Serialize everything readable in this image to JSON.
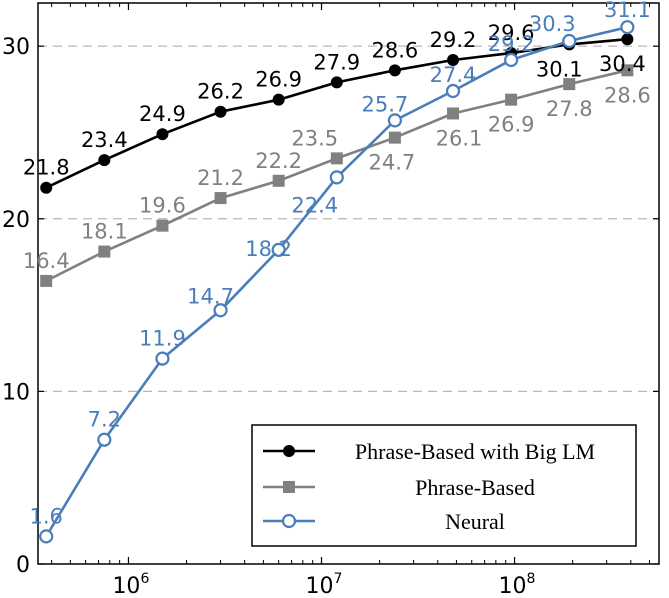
{
  "chart_data": {
    "type": "line",
    "xscale": "log",
    "xlim": [
      340000,
      560000000
    ],
    "ylim": [
      0,
      32.5
    ],
    "yticks": [
      0,
      10,
      20,
      30
    ],
    "xticks": [
      {
        "value": 1000000,
        "base": "10",
        "exp": "6"
      },
      {
        "value": 10000000,
        "base": "10",
        "exp": "7"
      },
      {
        "value": 100000000,
        "base": "10",
        "exp": "8"
      }
    ],
    "grid": "horizontal-dashed",
    "legend_position": "bottom-right",
    "x": [
      375000,
      750000,
      1500000,
      3000000,
      6000000,
      12000000,
      24000000,
      48000000,
      96000000,
      192000000,
      384000000
    ],
    "series": [
      {
        "name": "Phrase-Based with Big LM",
        "color": "#000000",
        "marker": "circle-filled",
        "values": [
          21.8,
          23.4,
          24.9,
          26.2,
          26.9,
          27.9,
          28.6,
          29.2,
          29.6,
          30.1,
          30.4
        ],
        "labels": [
          "21.8",
          "23.4",
          "24.9",
          "26.2",
          "26.9",
          "27.9",
          "28.6",
          "29.2",
          "29.6",
          "30.1",
          "30.4"
        ]
      },
      {
        "name": "Phrase-Based",
        "color": "#808080",
        "marker": "square-filled",
        "values": [
          16.4,
          18.1,
          19.6,
          21.2,
          22.2,
          23.5,
          24.7,
          26.1,
          26.9,
          27.8,
          28.6
        ],
        "labels": [
          "16.4",
          "18.1",
          "19.6",
          "21.2",
          "22.2",
          "23.5",
          "24.7",
          "26.1",
          "26.9",
          "27.8",
          "28.6"
        ]
      },
      {
        "name": "Neural",
        "color": "#4a7ebb",
        "marker": "circle-open",
        "values": [
          1.6,
          7.2,
          11.9,
          14.7,
          18.2,
          22.4,
          25.7,
          27.4,
          29.2,
          30.3,
          31.1
        ],
        "labels": [
          "1.6",
          "7.2",
          "11.9",
          "14.7",
          "18.2",
          "22.4",
          "25.7",
          "27.4",
          "29.2",
          "30.3",
          "31.1"
        ]
      }
    ]
  }
}
